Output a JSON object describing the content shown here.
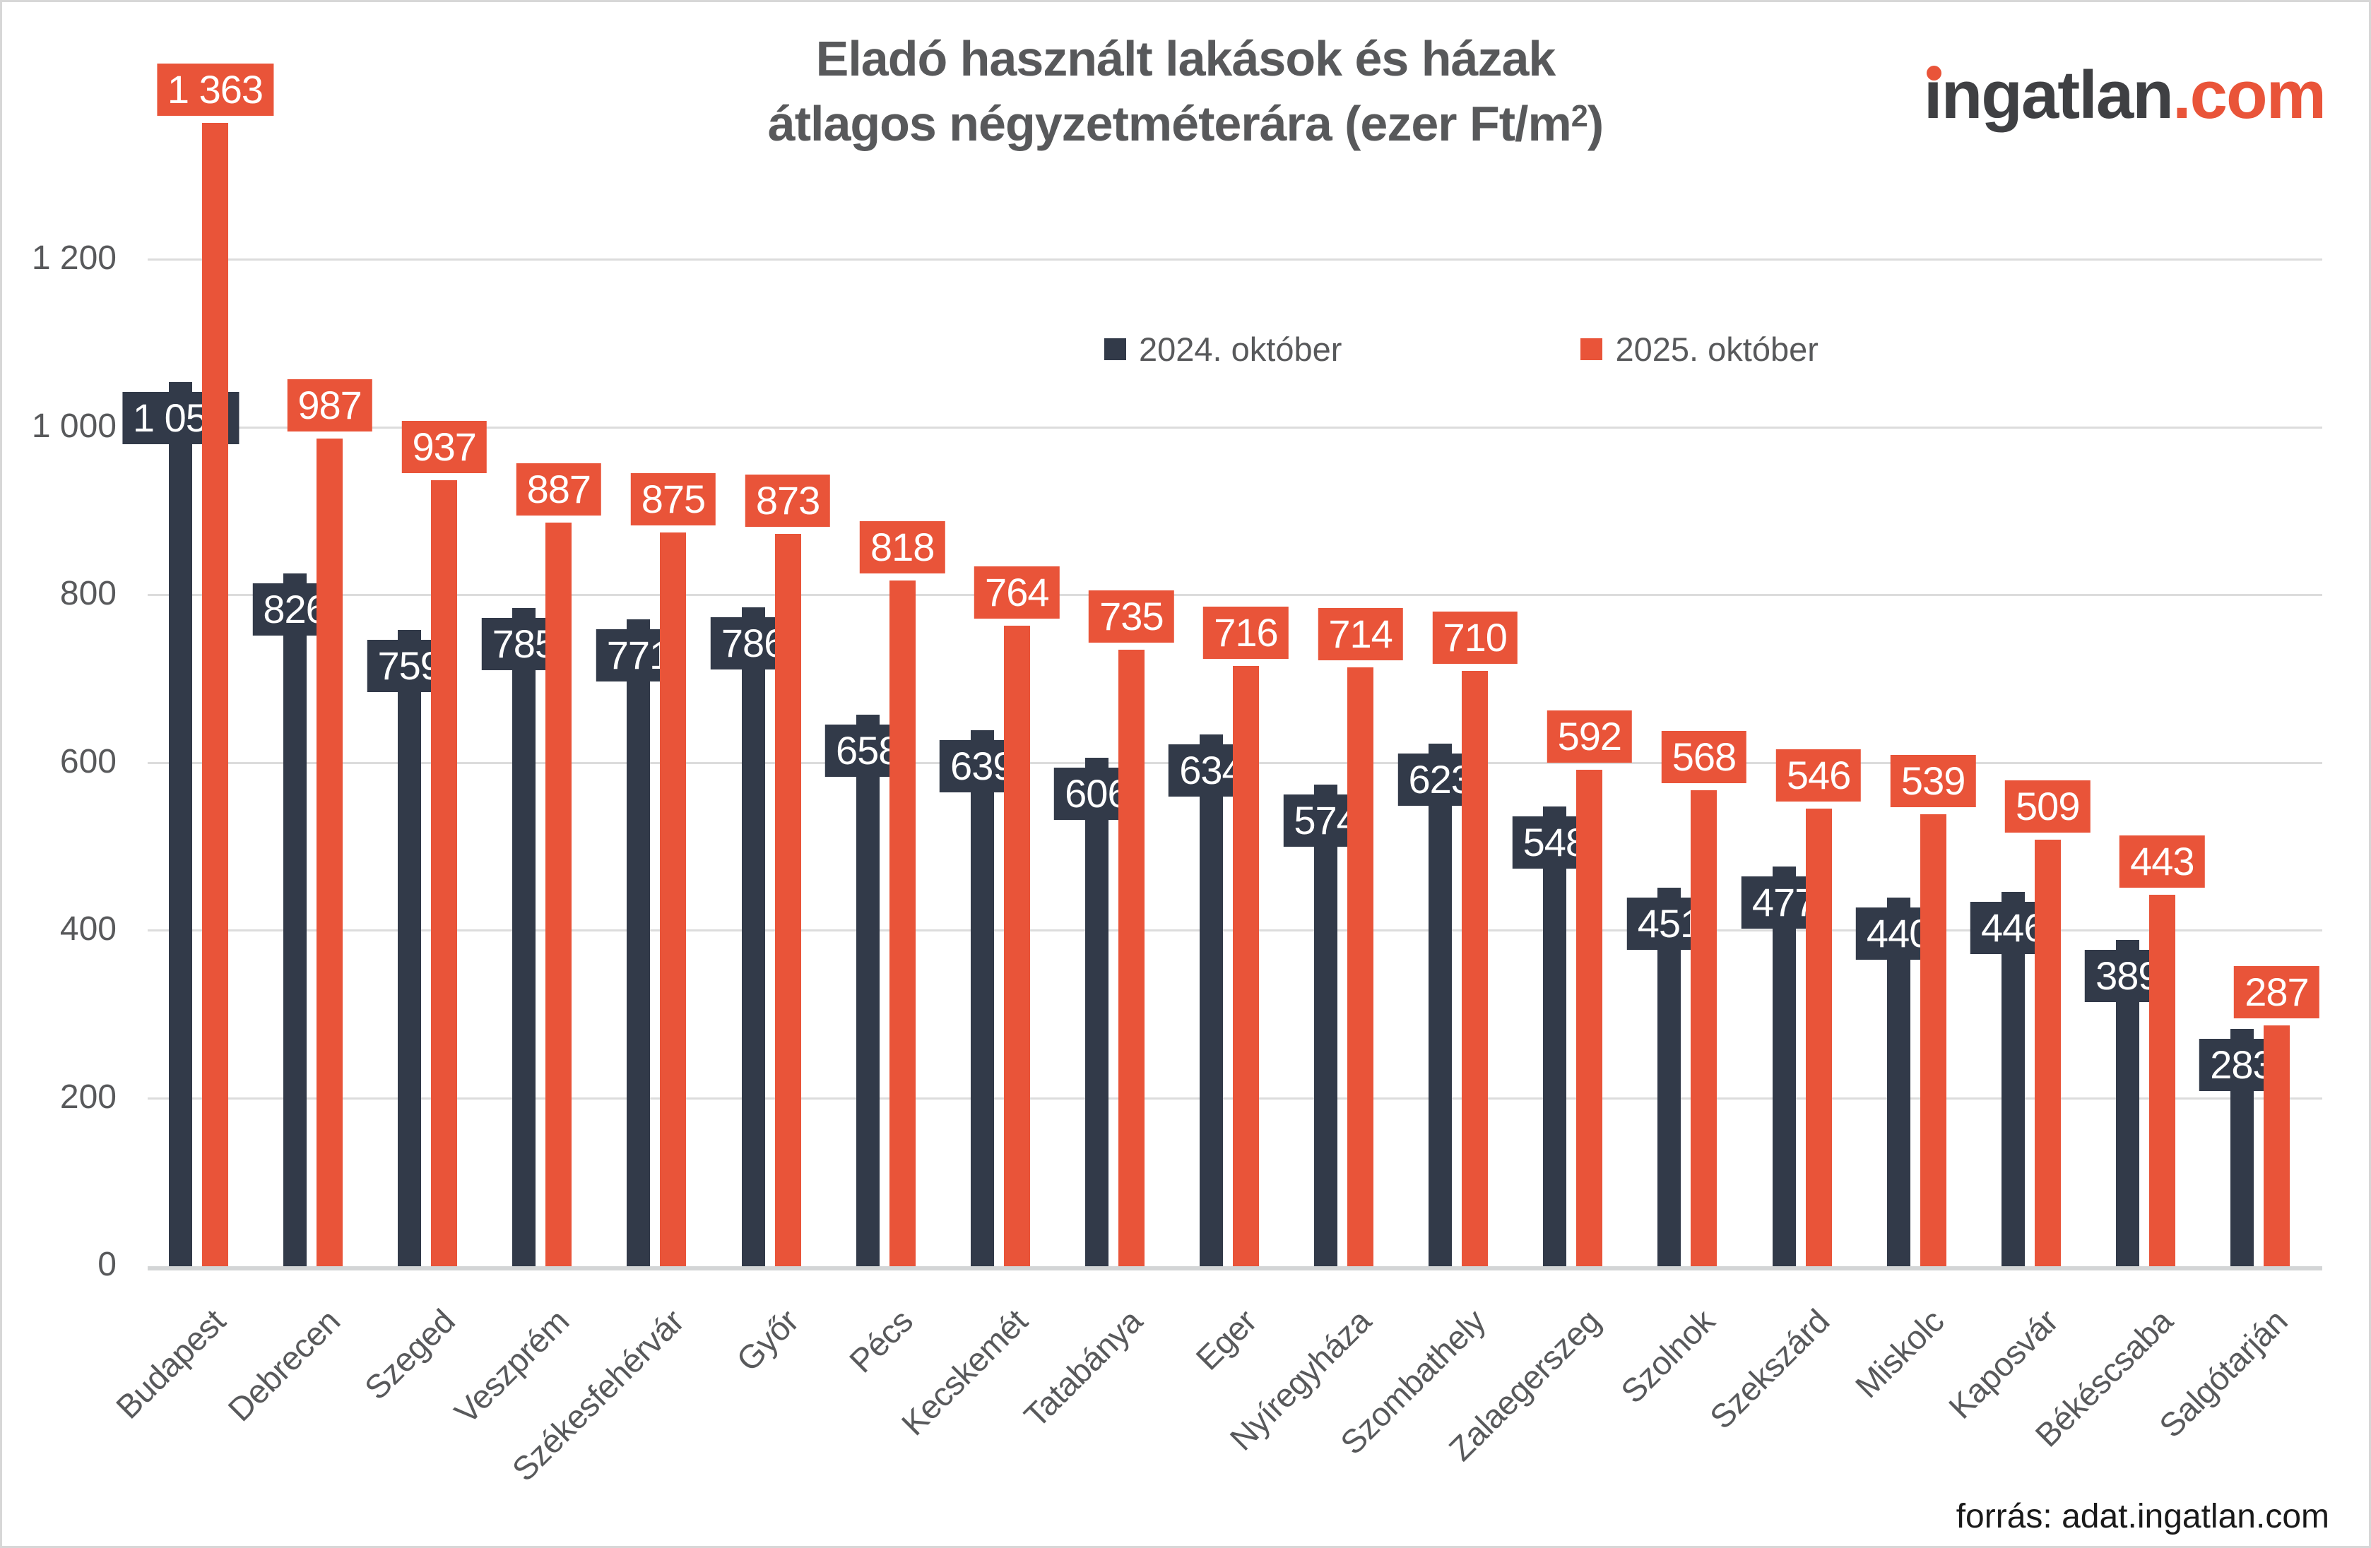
{
  "title": {
    "line1": "Eladó használt lakások és házak",
    "line2_pre": "átlagos négyzetméterára (ezer Ft/m",
    "line2_sup": "2",
    "line2_post": ")"
  },
  "logo": {
    "brand": "ingatlan",
    "tld": ".com"
  },
  "source": {
    "text": "forrás: adat.ingatlan.com"
  },
  "chart_data": {
    "type": "bar",
    "title": "Eladó használt lakások és házak átlagos négyzetméterára (ezer Ft/m²)",
    "legend_position": "top-center",
    "grid": true,
    "categories": [
      "Budapest",
      "Debrecen",
      "Szeged",
      "Veszprém",
      "Székesfehérvár",
      "Győr",
      "Pécs",
      "Kecskemét",
      "Tatabánya",
      "Eger",
      "Nyíregyháza",
      "Szombathely",
      "Zalaegerszeg",
      "Szolnok",
      "Szekszárd",
      "Miskolc",
      "Kaposvár",
      "Békéscsaba",
      "Salgótarján"
    ],
    "series": [
      {
        "name": "2024. október",
        "color": "#323A49",
        "values": [
          1054,
          826,
          759,
          785,
          771,
          786,
          658,
          639,
          606,
          634,
          574,
          623,
          548,
          451,
          477,
          440,
          446,
          389,
          283
        ],
        "labels": [
          "1 054",
          "826",
          "759",
          "785",
          "771",
          "786",
          "658",
          "639",
          "606",
          "634",
          "574",
          "623",
          "548",
          "451",
          "477",
          "440",
          "446",
          "389",
          "283"
        ]
      },
      {
        "name": "2025. október",
        "color": "#E95439",
        "values": [
          1363,
          987,
          937,
          887,
          875,
          873,
          818,
          764,
          735,
          716,
          714,
          710,
          592,
          568,
          546,
          539,
          509,
          443,
          287
        ],
        "labels": [
          "1 363",
          "987",
          "937",
          "887",
          "875",
          "873",
          "818",
          "764",
          "735",
          "716",
          "714",
          "710",
          "592",
          "568",
          "546",
          "539",
          "509",
          "443",
          "287"
        ]
      }
    ],
    "y_axis": {
      "min": 0,
      "max": 1200,
      "step": 200,
      "ticks": [
        {
          "label": "1 200",
          "value": 1200
        },
        {
          "label": "1 000",
          "value": 1000
        },
        {
          "label": "800",
          "value": 800
        },
        {
          "label": "600",
          "value": 600
        },
        {
          "label": "400",
          "value": 400
        },
        {
          "label": "200",
          "value": 200
        },
        {
          "label": "0",
          "value": 0
        }
      ]
    }
  }
}
